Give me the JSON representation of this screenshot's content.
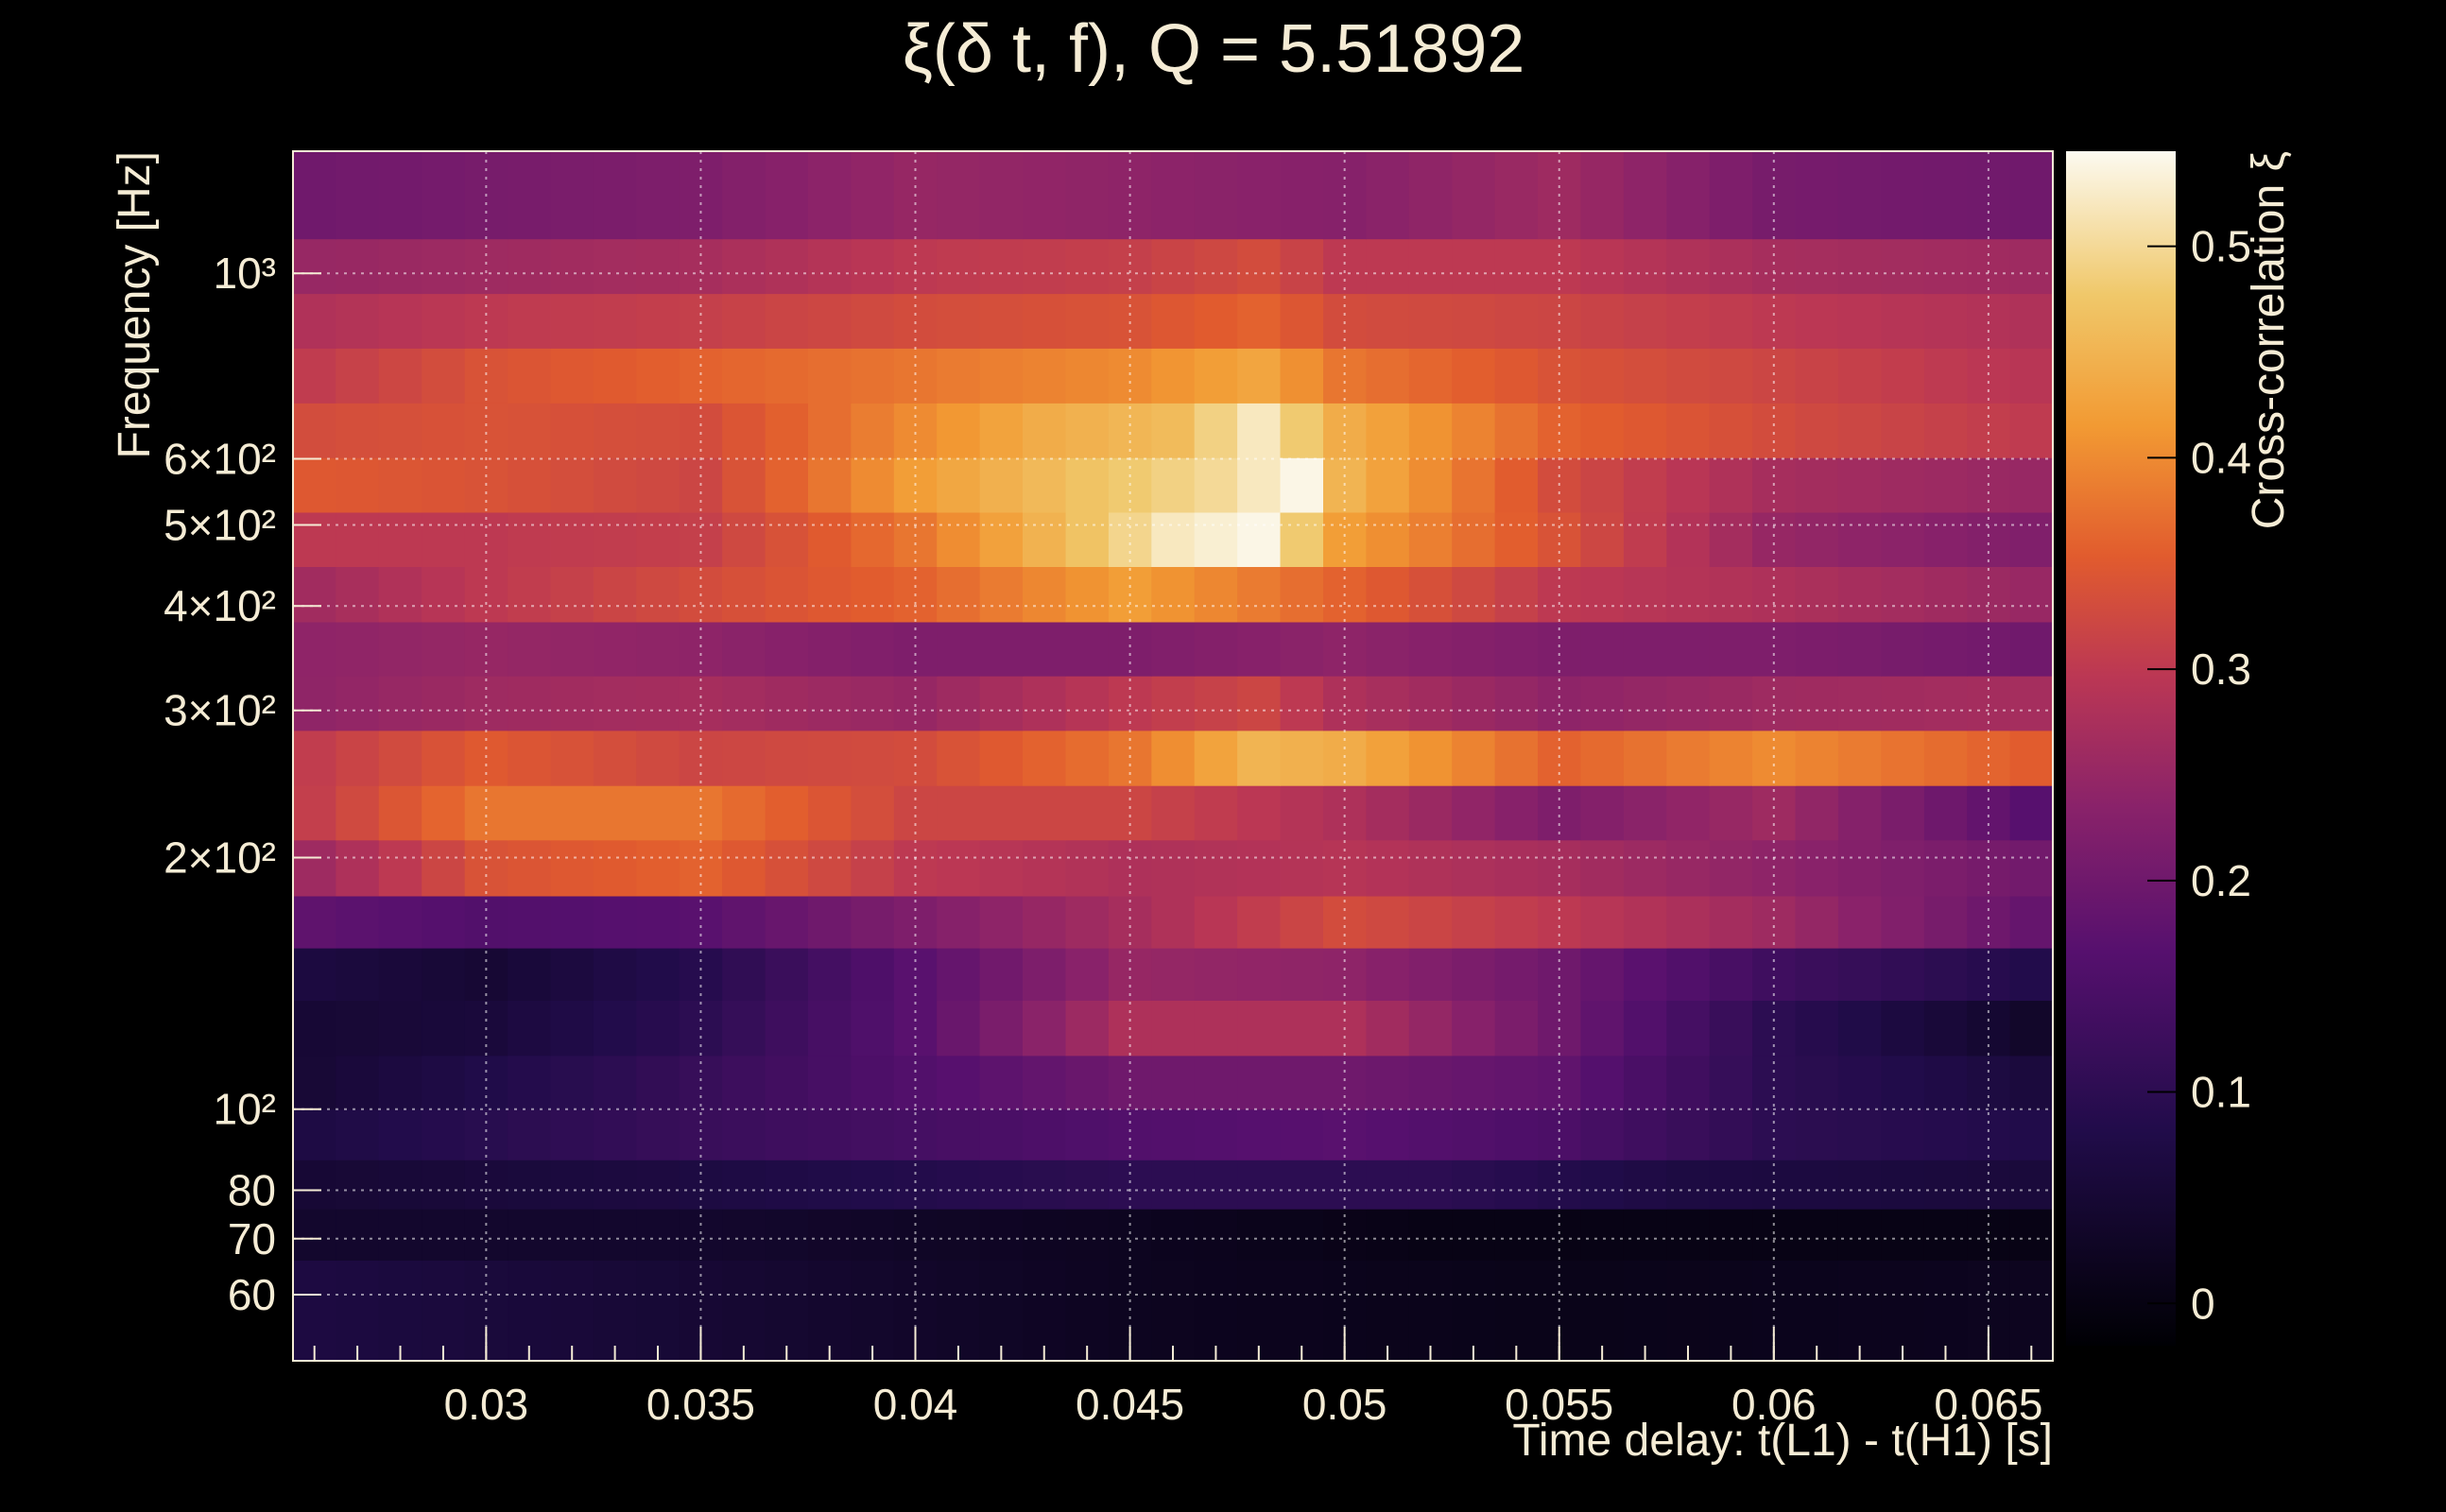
{
  "chart_data": {
    "type": "heatmap",
    "title": "ξ(δ t, f), Q = 5.51892",
    "xlabel": "Time delay: t(L1) - t(H1) [s]",
    "ylabel": "Frequency [Hz]",
    "colorbar_label": "Cross-correlation ξ",
    "x_range": [
      0.0255,
      0.0665
    ],
    "y_range": [
      50,
      1400
    ],
    "y_scale": "log",
    "z_range": [
      -0.02,
      0.545
    ],
    "grid": true,
    "colormap": "inferno",
    "x_ticks": [
      {
        "value": 0.03,
        "label": "0.03"
      },
      {
        "value": 0.035,
        "label": "0.035"
      },
      {
        "value": 0.04,
        "label": "0.04"
      },
      {
        "value": 0.045,
        "label": "0.045"
      },
      {
        "value": 0.05,
        "label": "0.05"
      },
      {
        "value": 0.055,
        "label": "0.055"
      },
      {
        "value": 0.06,
        "label": "0.06"
      },
      {
        "value": 0.065,
        "label": "0.065"
      }
    ],
    "y_ticks": [
      {
        "value": 60,
        "label": "60"
      },
      {
        "value": 70,
        "label": "70"
      },
      {
        "value": 80,
        "label": "80"
      },
      {
        "value": 100,
        "label": "10²"
      },
      {
        "value": 200,
        "label": "2×10²"
      },
      {
        "value": 300,
        "label": "3×10²"
      },
      {
        "value": 400,
        "label": "4×10²"
      },
      {
        "value": 500,
        "label": "5×10²"
      },
      {
        "value": 600,
        "label": "6×10²"
      },
      {
        "value": 1000,
        "label": "10³"
      }
    ],
    "colorbar_ticks": [
      {
        "value": 0,
        "label": "0"
      },
      {
        "value": 0.1,
        "label": "0.1"
      },
      {
        "value": 0.2,
        "label": "0.2"
      },
      {
        "value": 0.3,
        "label": "0.3"
      },
      {
        "value": 0.4,
        "label": "0.4"
      },
      {
        "value": 0.5,
        "label": "0.5"
      }
    ],
    "rows": [
      {
        "f_low": 50,
        "f_high": 66,
        "knots": [
          [
            0.0255,
            0.07
          ],
          [
            0.035,
            0.05
          ],
          [
            0.045,
            0.02
          ],
          [
            0.055,
            0.01
          ],
          [
            0.0665,
            0.02
          ]
        ]
      },
      {
        "f_low": 66,
        "f_high": 76,
        "knots": [
          [
            0.0255,
            0.04
          ],
          [
            0.035,
            0.04
          ],
          [
            0.045,
            0.02
          ],
          [
            0.052,
            0.005
          ],
          [
            0.0665,
            0.005
          ]
        ]
      },
      {
        "f_low": 76,
        "f_high": 87,
        "knots": [
          [
            0.0255,
            0.05
          ],
          [
            0.035,
            0.07
          ],
          [
            0.045,
            0.1
          ],
          [
            0.052,
            0.1
          ],
          [
            0.058,
            0.07
          ],
          [
            0.0665,
            0.06
          ]
        ]
      },
      {
        "f_low": 87,
        "f_high": 100,
        "knots": [
          [
            0.0255,
            0.07
          ],
          [
            0.035,
            0.12
          ],
          [
            0.045,
            0.16
          ],
          [
            0.05,
            0.17
          ],
          [
            0.055,
            0.15
          ],
          [
            0.06,
            0.1
          ],
          [
            0.0665,
            0.08
          ]
        ]
      },
      {
        "f_low": 100,
        "f_high": 116,
        "knots": [
          [
            0.0255,
            0.05
          ],
          [
            0.033,
            0.1
          ],
          [
            0.04,
            0.16
          ],
          [
            0.045,
            0.2
          ],
          [
            0.05,
            0.2
          ],
          [
            0.055,
            0.18
          ],
          [
            0.06,
            0.1
          ],
          [
            0.0665,
            0.06
          ]
        ]
      },
      {
        "f_low": 116,
        "f_high": 135,
        "knots": [
          [
            0.0255,
            0.05
          ],
          [
            0.03,
            0.06
          ],
          [
            0.035,
            0.1
          ],
          [
            0.04,
            0.17
          ],
          [
            0.045,
            0.28
          ],
          [
            0.05,
            0.28
          ],
          [
            0.055,
            0.2
          ],
          [
            0.06,
            0.1
          ],
          [
            0.0665,
            0.03
          ]
        ]
      },
      {
        "f_low": 135,
        "f_high": 156,
        "knots": [
          [
            0.0255,
            0.07
          ],
          [
            0.03,
            0.05
          ],
          [
            0.035,
            0.09
          ],
          [
            0.04,
            0.17
          ],
          [
            0.045,
            0.25
          ],
          [
            0.05,
            0.24
          ],
          [
            0.055,
            0.2
          ],
          [
            0.06,
            0.13
          ],
          [
            0.0665,
            0.08
          ]
        ]
      },
      {
        "f_low": 156,
        "f_high": 180,
        "knots": [
          [
            0.0255,
            0.18
          ],
          [
            0.03,
            0.16
          ],
          [
            0.035,
            0.17
          ],
          [
            0.04,
            0.22
          ],
          [
            0.045,
            0.27
          ],
          [
            0.05,
            0.33
          ],
          [
            0.055,
            0.3
          ],
          [
            0.06,
            0.26
          ],
          [
            0.0665,
            0.18
          ]
        ]
      },
      {
        "f_low": 180,
        "f_high": 210,
        "knots": [
          [
            0.0255,
            0.25
          ],
          [
            0.03,
            0.34
          ],
          [
            0.035,
            0.36
          ],
          [
            0.04,
            0.3
          ],
          [
            0.045,
            0.28
          ],
          [
            0.05,
            0.29
          ],
          [
            0.055,
            0.27
          ],
          [
            0.06,
            0.24
          ],
          [
            0.0665,
            0.2
          ]
        ]
      },
      {
        "f_low": 210,
        "f_high": 244,
        "knots": [
          [
            0.0255,
            0.3
          ],
          [
            0.03,
            0.38
          ],
          [
            0.035,
            0.38
          ],
          [
            0.04,
            0.32
          ],
          [
            0.045,
            0.32
          ],
          [
            0.05,
            0.28
          ],
          [
            0.055,
            0.22
          ],
          [
            0.06,
            0.26
          ],
          [
            0.0665,
            0.16
          ]
        ]
      },
      {
        "f_low": 244,
        "f_high": 284,
        "knots": [
          [
            0.0255,
            0.3
          ],
          [
            0.03,
            0.35
          ],
          [
            0.035,
            0.32
          ],
          [
            0.04,
            0.33
          ],
          [
            0.045,
            0.38
          ],
          [
            0.048,
            0.45
          ],
          [
            0.05,
            0.44
          ],
          [
            0.055,
            0.36
          ],
          [
            0.06,
            0.4
          ],
          [
            0.0665,
            0.35
          ]
        ]
      },
      {
        "f_low": 284,
        "f_high": 330,
        "knots": [
          [
            0.0255,
            0.24
          ],
          [
            0.03,
            0.26
          ],
          [
            0.035,
            0.27
          ],
          [
            0.04,
            0.25
          ],
          [
            0.045,
            0.3
          ],
          [
            0.048,
            0.32
          ],
          [
            0.05,
            0.28
          ],
          [
            0.055,
            0.24
          ],
          [
            0.06,
            0.26
          ],
          [
            0.0665,
            0.27
          ]
        ]
      },
      {
        "f_low": 330,
        "f_high": 383,
        "knots": [
          [
            0.0255,
            0.24
          ],
          [
            0.03,
            0.25
          ],
          [
            0.035,
            0.24
          ],
          [
            0.04,
            0.22
          ],
          [
            0.045,
            0.22
          ],
          [
            0.05,
            0.24
          ],
          [
            0.055,
            0.22
          ],
          [
            0.06,
            0.22
          ],
          [
            0.0665,
            0.2
          ]
        ]
      },
      {
        "f_low": 383,
        "f_high": 446,
        "knots": [
          [
            0.0255,
            0.26
          ],
          [
            0.03,
            0.3
          ],
          [
            0.035,
            0.33
          ],
          [
            0.04,
            0.36
          ],
          [
            0.045,
            0.42
          ],
          [
            0.05,
            0.36
          ],
          [
            0.055,
            0.3
          ],
          [
            0.06,
            0.28
          ],
          [
            0.0665,
            0.25
          ]
        ]
      },
      {
        "f_low": 446,
        "f_high": 518,
        "knots": [
          [
            0.0255,
            0.3
          ],
          [
            0.03,
            0.3
          ],
          [
            0.035,
            0.31
          ],
          [
            0.04,
            0.38
          ],
          [
            0.044,
            0.47
          ],
          [
            0.046,
            0.52
          ],
          [
            0.048,
            0.54
          ],
          [
            0.05,
            0.42
          ],
          [
            0.055,
            0.34
          ],
          [
            0.06,
            0.25
          ],
          [
            0.0665,
            0.22
          ]
        ]
      },
      {
        "f_low": 518,
        "f_high": 602,
        "knots": [
          [
            0.0255,
            0.35
          ],
          [
            0.03,
            0.34
          ],
          [
            0.035,
            0.32
          ],
          [
            0.04,
            0.42
          ],
          [
            0.044,
            0.47
          ],
          [
            0.047,
            0.5
          ],
          [
            0.049,
            0.54
          ],
          [
            0.05,
            0.45
          ],
          [
            0.055,
            0.33
          ],
          [
            0.06,
            0.27
          ],
          [
            0.0665,
            0.25
          ]
        ]
      },
      {
        "f_low": 602,
        "f_high": 700,
        "knots": [
          [
            0.0255,
            0.33
          ],
          [
            0.03,
            0.34
          ],
          [
            0.035,
            0.33
          ],
          [
            0.04,
            0.4
          ],
          [
            0.043,
            0.44
          ],
          [
            0.046,
            0.46
          ],
          [
            0.048,
            0.52
          ],
          [
            0.05,
            0.44
          ],
          [
            0.055,
            0.36
          ],
          [
            0.06,
            0.33
          ],
          [
            0.0665,
            0.3
          ]
        ]
      },
      {
        "f_low": 700,
        "f_high": 814,
        "knots": [
          [
            0.0255,
            0.3
          ],
          [
            0.03,
            0.34
          ],
          [
            0.035,
            0.36
          ],
          [
            0.04,
            0.38
          ],
          [
            0.045,
            0.4
          ],
          [
            0.048,
            0.43
          ],
          [
            0.05,
            0.38
          ],
          [
            0.055,
            0.34
          ],
          [
            0.06,
            0.32
          ],
          [
            0.0665,
            0.29
          ]
        ]
      },
      {
        "f_low": 814,
        "f_high": 946,
        "knots": [
          [
            0.0255,
            0.28
          ],
          [
            0.03,
            0.3
          ],
          [
            0.035,
            0.31
          ],
          [
            0.04,
            0.33
          ],
          [
            0.045,
            0.34
          ],
          [
            0.048,
            0.36
          ],
          [
            0.05,
            0.33
          ],
          [
            0.055,
            0.32
          ],
          [
            0.06,
            0.3
          ],
          [
            0.0665,
            0.28
          ]
        ]
      },
      {
        "f_low": 946,
        "f_high": 1100,
        "knots": [
          [
            0.0255,
            0.25
          ],
          [
            0.03,
            0.26
          ],
          [
            0.035,
            0.27
          ],
          [
            0.04,
            0.3
          ],
          [
            0.045,
            0.31
          ],
          [
            0.048,
            0.33
          ],
          [
            0.05,
            0.3
          ],
          [
            0.055,
            0.3
          ],
          [
            0.06,
            0.27
          ],
          [
            0.0665,
            0.26
          ]
        ]
      },
      {
        "f_low": 1100,
        "f_high": 1400,
        "knots": [
          [
            0.0255,
            0.2
          ],
          [
            0.03,
            0.21
          ],
          [
            0.035,
            0.22
          ],
          [
            0.04,
            0.25
          ],
          [
            0.045,
            0.24
          ],
          [
            0.05,
            0.23
          ],
          [
            0.055,
            0.26
          ],
          [
            0.06,
            0.21
          ],
          [
            0.0665,
            0.2
          ]
        ]
      }
    ]
  }
}
